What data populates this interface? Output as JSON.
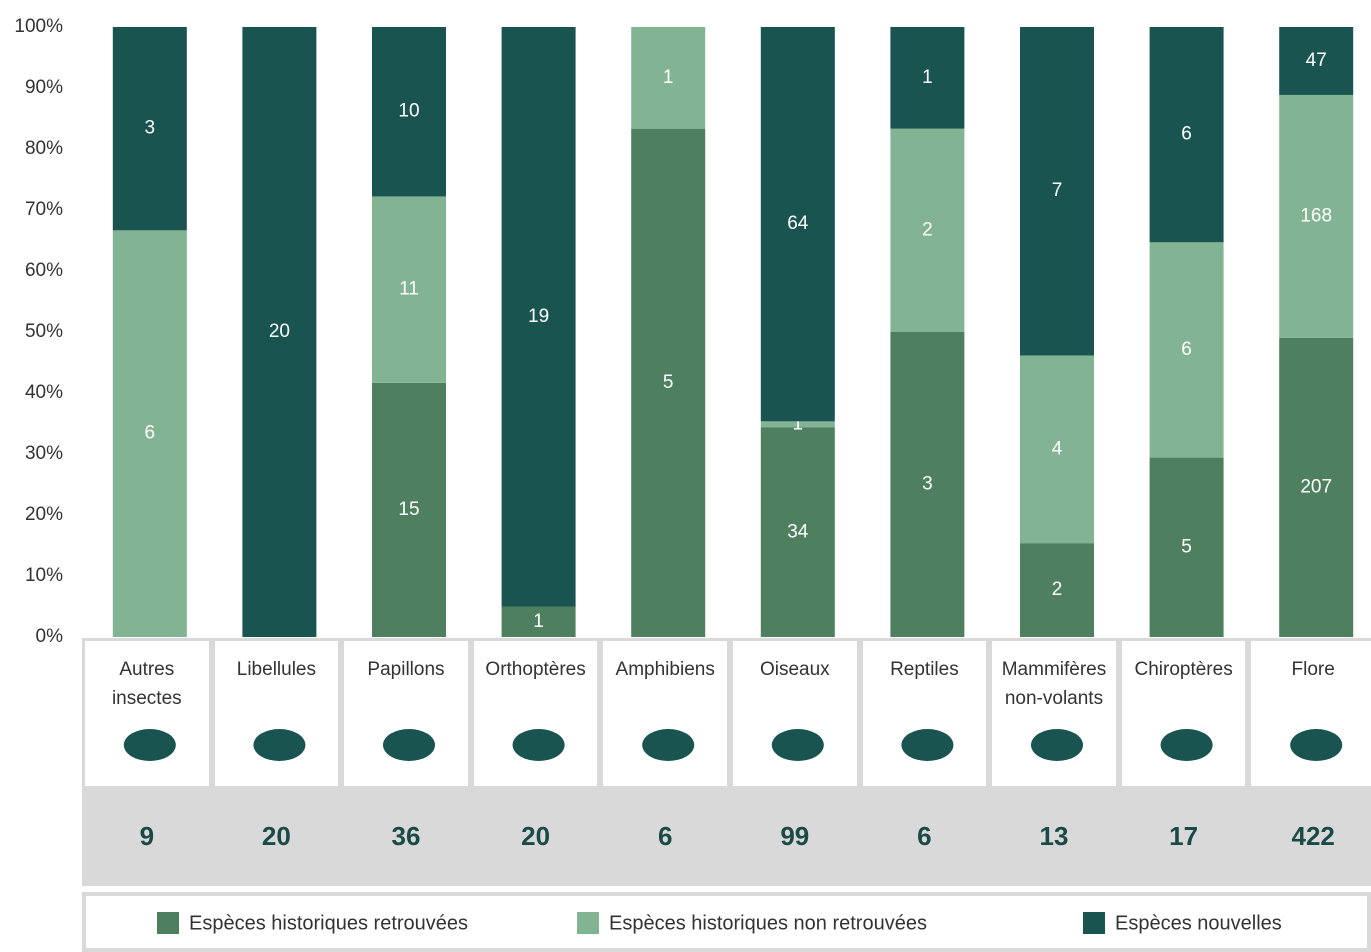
{
  "chart_data": {
    "type": "stacked100",
    "categories": [
      "Autres insectes",
      "Libellules",
      "Papillons",
      "Orthoptères",
      "Amphibiens",
      "Oiseaux",
      "Reptiles",
      "Mammifères non-volants",
      "Chiroptères",
      "Flore"
    ],
    "series": [
      {
        "name": "Espèces historiques retrouvées",
        "color": "#4e8060",
        "values": [
          0,
          0,
          15,
          1,
          5,
          34,
          3,
          2,
          5,
          207
        ]
      },
      {
        "name": "Espèces historiques non retrouvées",
        "color": "#82b393",
        "values": [
          6,
          0,
          11,
          0,
          1,
          1,
          2,
          4,
          6,
          168
        ]
      },
      {
        "name": "Espèces nouvelles",
        "color": "#1a5450",
        "values": [
          3,
          20,
          10,
          19,
          0,
          64,
          1,
          7,
          6,
          47
        ]
      }
    ],
    "totals": [
      9,
      20,
      36,
      20,
      6,
      99,
      6,
      13,
      17,
      422
    ],
    "ylim": [
      0,
      100
    ],
    "yticks": [
      {
        "value": 0,
        "label": "0%"
      },
      {
        "value": 10,
        "label": "10%"
      },
      {
        "value": 20,
        "label": "20%"
      },
      {
        "value": 30,
        "label": "30%"
      },
      {
        "value": 40,
        "label": "40%"
      },
      {
        "value": 50,
        "label": "50%"
      },
      {
        "value": 60,
        "label": "60%"
      },
      {
        "value": 70,
        "label": "70%"
      },
      {
        "value": 80,
        "label": "80%"
      },
      {
        "value": 90,
        "label": "90%"
      },
      {
        "value": 100,
        "label": "100%"
      }
    ],
    "legend": "bottom"
  }
}
